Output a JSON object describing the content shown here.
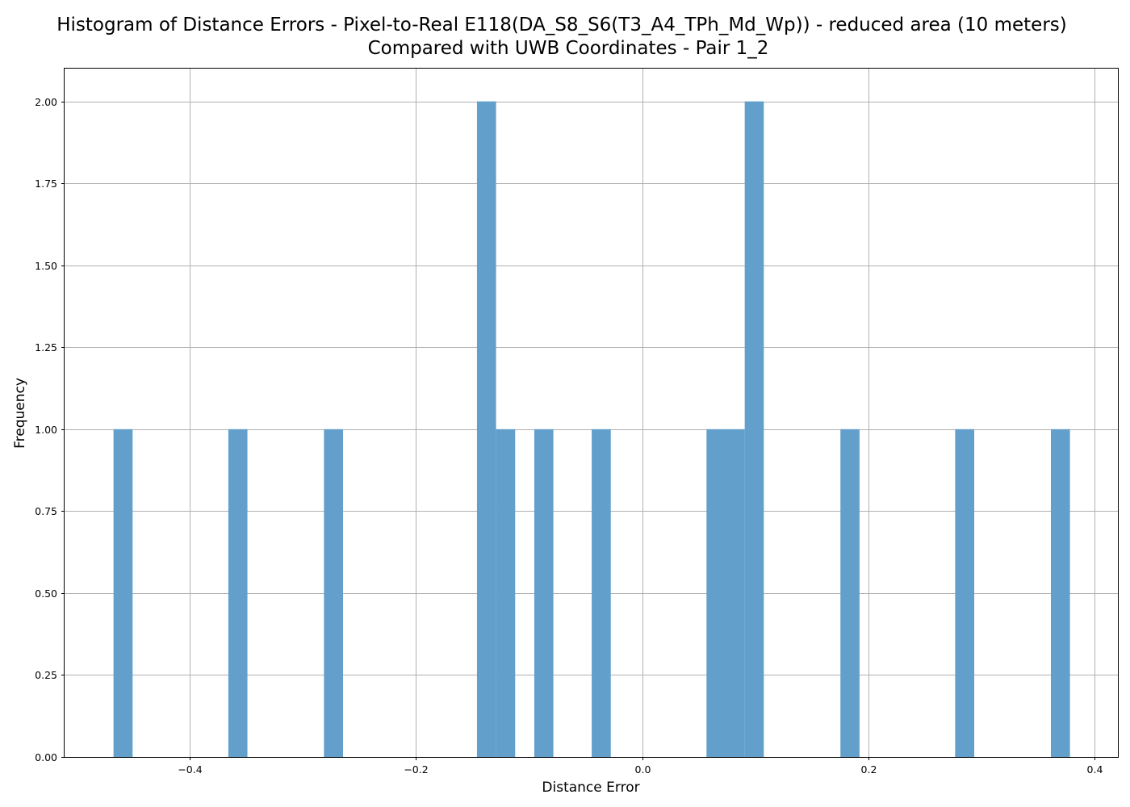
{
  "chart_data": {
    "type": "bar",
    "title_line1": "Histogram of Distance Errors - Pixel-to-Real E118(DA_S8_S6(T3_A4_TPh_Md_Wp)) - reduced area (10 meters)",
    "title_line2": "Compared with UWB Coordinates - Pair 1_2",
    "xlabel": "Distance Error",
    "ylabel": "Frequency",
    "xlim": [
      -0.511,
      0.421
    ],
    "ylim": [
      0,
      2.1
    ],
    "grid": true,
    "bar_color": "#62a0cb",
    "x_ticks": [
      -0.4,
      -0.2,
      0.0,
      0.2,
      0.4
    ],
    "x_tick_labels": [
      "−0.4",
      "−0.2",
      "0.0",
      "0.2",
      "0.4"
    ],
    "y_ticks": [
      0,
      0.25,
      0.5,
      0.75,
      1.0,
      1.25,
      1.5,
      1.75,
      2.0
    ],
    "y_tick_labels": [
      "0.00",
      "0.25",
      "0.50",
      "0.75",
      "1.00",
      "1.25",
      "1.50",
      "1.75",
      "2.00"
    ],
    "bins": [
      {
        "x0": -0.4677,
        "x1": -0.4508,
        "count": 1
      },
      {
        "x0": -0.3661,
        "x1": -0.3492,
        "count": 1
      },
      {
        "x0": -0.2815,
        "x1": -0.2646,
        "count": 1
      },
      {
        "x0": -0.1461,
        "x1": -0.1292,
        "count": 2
      },
      {
        "x0": -0.1292,
        "x1": -0.1123,
        "count": 1
      },
      {
        "x0": -0.0954,
        "x1": -0.0785,
        "count": 1
      },
      {
        "x0": -0.0446,
        "x1": -0.0277,
        "count": 1
      },
      {
        "x0": 0.057,
        "x1": 0.0739,
        "count": 1
      },
      {
        "x0": 0.0739,
        "x1": 0.0908,
        "count": 1
      },
      {
        "x0": 0.0908,
        "x1": 0.1077,
        "count": 2
      },
      {
        "x0": 0.1755,
        "x1": 0.1924,
        "count": 1
      },
      {
        "x0": 0.277,
        "x1": 0.2939,
        "count": 1
      },
      {
        "x0": 0.3617,
        "x1": 0.3786,
        "count": 1
      }
    ]
  }
}
